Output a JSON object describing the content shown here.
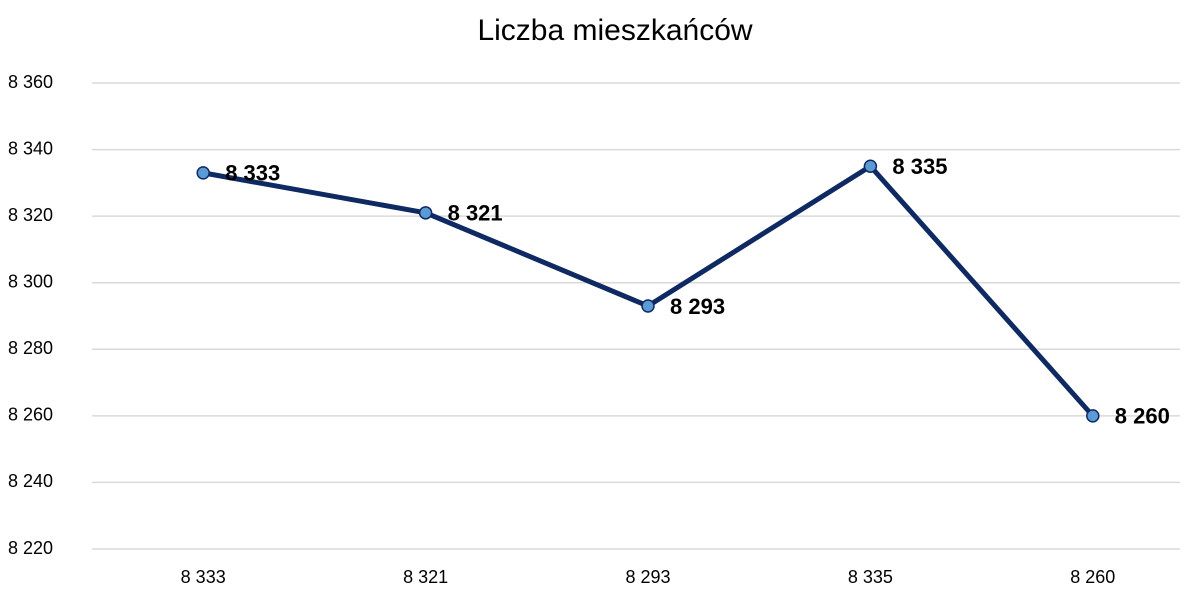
{
  "chart_data": {
    "type": "line",
    "title": "Liczba mieszkańców",
    "categories": [
      "8 333",
      "8 321",
      "8 293",
      "8 335",
      "8 260"
    ],
    "series": [
      {
        "name": "Liczba mieszkańców",
        "color": "#0f2a63",
        "marker_color": "#5b9bd5",
        "values": [
          8333,
          8321,
          8293,
          8335,
          8260
        ],
        "value_labels": [
          "8 333",
          "8 321",
          "8 293",
          "8 335",
          "8 260"
        ]
      }
    ],
    "ylim": [
      8220,
      8360
    ],
    "yticks": [
      {
        "value": 8220,
        "label": "8 220"
      },
      {
        "value": 8240,
        "label": "8 240"
      },
      {
        "value": 8260,
        "label": "8 260"
      },
      {
        "value": 8280,
        "label": "8 280"
      },
      {
        "value": 8300,
        "label": "8 300"
      },
      {
        "value": 8320,
        "label": "8 320"
      },
      {
        "value": 8340,
        "label": "8 340"
      },
      {
        "value": 8360,
        "label": "8 360"
      }
    ],
    "grid": true
  }
}
